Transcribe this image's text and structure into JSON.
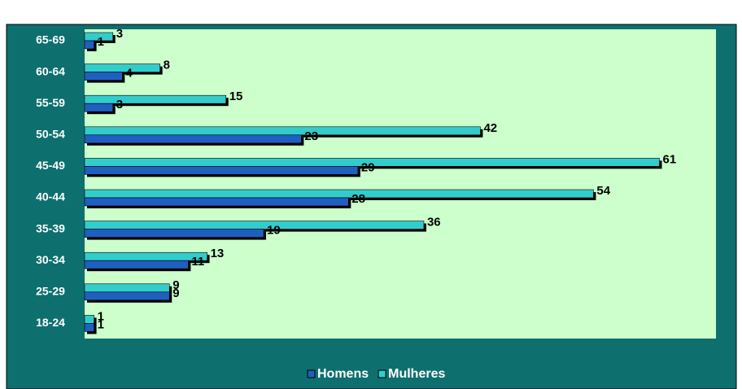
{
  "chart_data": {
    "type": "bar",
    "orientation": "horizontal",
    "categories": [
      "65-69",
      "60-64",
      "55-59",
      "50-54",
      "45-49",
      "40-44",
      "35-39",
      "30-34",
      "25-29",
      "18-24"
    ],
    "series": [
      {
        "name": "Homens",
        "color": "#1f5fc0",
        "values": [
          1,
          4,
          3,
          23,
          29,
          28,
          19,
          11,
          9,
          1
        ]
      },
      {
        "name": "Mulheres",
        "color": "#33cccc",
        "values": [
          3,
          8,
          15,
          42,
          61,
          54,
          36,
          13,
          9,
          1
        ]
      }
    ],
    "xlim": [
      0,
      67
    ]
  }
}
